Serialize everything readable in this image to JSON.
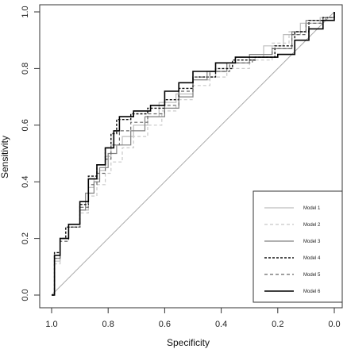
{
  "chart_data": {
    "type": "line",
    "title": "",
    "xlabel": "Specificity",
    "ylabel": "Sensitivity",
    "x_reversed": true,
    "xlim": [
      1.0,
      0.0
    ],
    "ylim": [
      0.0,
      1.0
    ],
    "x_ticks": [
      "1.0",
      "0.8",
      "0.6",
      "0.4",
      "0.2",
      "0.0"
    ],
    "y_ticks": [
      "0.0",
      "0.2",
      "0.4",
      "0.6",
      "0.8",
      "1.0"
    ],
    "grid": false,
    "legend_position": "bottom-right",
    "reference_line": {
      "from": [
        1.0,
        0.0
      ],
      "to": [
        0.0,
        1.0
      ],
      "color": "#aaaaaa"
    },
    "series": [
      {
        "name": "Model 1",
        "color": "#bdbdbd",
        "dash": "solid",
        "width": 1.2,
        "points": [
          [
            1.0,
            0.0
          ],
          [
            0.99,
            0.12
          ],
          [
            0.97,
            0.2
          ],
          [
            0.94,
            0.25
          ],
          [
            0.9,
            0.3
          ],
          [
            0.87,
            0.38
          ],
          [
            0.85,
            0.41
          ],
          [
            0.83,
            0.44
          ],
          [
            0.81,
            0.49
          ],
          [
            0.79,
            0.53
          ],
          [
            0.75,
            0.56
          ],
          [
            0.71,
            0.6
          ],
          [
            0.66,
            0.63
          ],
          [
            0.62,
            0.68
          ],
          [
            0.56,
            0.71
          ],
          [
            0.5,
            0.76
          ],
          [
            0.44,
            0.79
          ],
          [
            0.38,
            0.82
          ],
          [
            0.3,
            0.84
          ],
          [
            0.25,
            0.88
          ],
          [
            0.18,
            0.92
          ],
          [
            0.12,
            0.96
          ],
          [
            0.05,
            0.98
          ],
          [
            0.0,
            1.0
          ]
        ]
      },
      {
        "name": "Model 2",
        "color": "#c8c8c8",
        "dash": "4,3",
        "width": 1.2,
        "points": [
          [
            1.0,
            0.0
          ],
          [
            0.99,
            0.11
          ],
          [
            0.97,
            0.19
          ],
          [
            0.94,
            0.24
          ],
          [
            0.9,
            0.29
          ],
          [
            0.87,
            0.35
          ],
          [
            0.84,
            0.39
          ],
          [
            0.81,
            0.43
          ],
          [
            0.79,
            0.47
          ],
          [
            0.75,
            0.52
          ],
          [
            0.71,
            0.56
          ],
          [
            0.66,
            0.6
          ],
          [
            0.61,
            0.65
          ],
          [
            0.56,
            0.69
          ],
          [
            0.5,
            0.74
          ],
          [
            0.44,
            0.77
          ],
          [
            0.38,
            0.8
          ],
          [
            0.3,
            0.83
          ],
          [
            0.22,
            0.89
          ],
          [
            0.16,
            0.93
          ],
          [
            0.1,
            0.96
          ],
          [
            0.05,
            0.98
          ],
          [
            0.0,
            1.0
          ]
        ]
      },
      {
        "name": "Model 3",
        "color": "#808080",
        "dash": "solid",
        "width": 1.2,
        "points": [
          [
            1.0,
            0.0
          ],
          [
            0.99,
            0.13
          ],
          [
            0.97,
            0.2
          ],
          [
            0.94,
            0.25
          ],
          [
            0.9,
            0.3
          ],
          [
            0.88,
            0.36
          ],
          [
            0.85,
            0.4
          ],
          [
            0.83,
            0.45
          ],
          [
            0.8,
            0.5
          ],
          [
            0.77,
            0.53
          ],
          [
            0.72,
            0.58
          ],
          [
            0.67,
            0.63
          ],
          [
            0.6,
            0.66
          ],
          [
            0.55,
            0.7
          ],
          [
            0.5,
            0.76
          ],
          [
            0.45,
            0.79
          ],
          [
            0.38,
            0.82
          ],
          [
            0.3,
            0.85
          ],
          [
            0.22,
            0.87
          ],
          [
            0.15,
            0.93
          ],
          [
            0.1,
            0.97
          ],
          [
            0.03,
            0.98
          ],
          [
            0.0,
            1.0
          ]
        ]
      },
      {
        "name": "Model 4",
        "color": "#111111",
        "dash": "3,2",
        "width": 1.4,
        "points": [
          [
            1.0,
            0.0
          ],
          [
            0.99,
            0.15
          ],
          [
            0.97,
            0.2
          ],
          [
            0.95,
            0.24
          ],
          [
            0.9,
            0.32
          ],
          [
            0.87,
            0.42
          ],
          [
            0.84,
            0.46
          ],
          [
            0.81,
            0.52
          ],
          [
            0.79,
            0.57
          ],
          [
            0.77,
            0.62
          ],
          [
            0.72,
            0.64
          ],
          [
            0.66,
            0.66
          ],
          [
            0.6,
            0.69
          ],
          [
            0.55,
            0.73
          ],
          [
            0.5,
            0.77
          ],
          [
            0.42,
            0.8
          ],
          [
            0.36,
            0.83
          ],
          [
            0.28,
            0.84
          ],
          [
            0.21,
            0.88
          ],
          [
            0.14,
            0.93
          ],
          [
            0.09,
            0.97
          ],
          [
            0.04,
            0.98
          ],
          [
            0.0,
            1.0
          ]
        ]
      },
      {
        "name": "Model 5",
        "color": "#666666",
        "dash": "4,3",
        "width": 1.2,
        "points": [
          [
            1.0,
            0.0
          ],
          [
            0.99,
            0.13
          ],
          [
            0.97,
            0.19
          ],
          [
            0.94,
            0.24
          ],
          [
            0.9,
            0.31
          ],
          [
            0.87,
            0.39
          ],
          [
            0.84,
            0.43
          ],
          [
            0.81,
            0.48
          ],
          [
            0.79,
            0.53
          ],
          [
            0.76,
            0.58
          ],
          [
            0.72,
            0.61
          ],
          [
            0.66,
            0.64
          ],
          [
            0.6,
            0.67
          ],
          [
            0.55,
            0.72
          ],
          [
            0.5,
            0.77
          ],
          [
            0.44,
            0.79
          ],
          [
            0.37,
            0.82
          ],
          [
            0.29,
            0.84
          ],
          [
            0.22,
            0.87
          ],
          [
            0.15,
            0.92
          ],
          [
            0.1,
            0.96
          ],
          [
            0.04,
            0.98
          ],
          [
            0.0,
            1.0
          ]
        ]
      },
      {
        "name": "Model 6",
        "color": "#000000",
        "dash": "solid",
        "width": 1.6,
        "points": [
          [
            1.0,
            0.0
          ],
          [
            0.99,
            0.14
          ],
          [
            0.97,
            0.2
          ],
          [
            0.94,
            0.25
          ],
          [
            0.9,
            0.33
          ],
          [
            0.87,
            0.41
          ],
          [
            0.84,
            0.46
          ],
          [
            0.81,
            0.52
          ],
          [
            0.78,
            0.58
          ],
          [
            0.76,
            0.63
          ],
          [
            0.71,
            0.65
          ],
          [
            0.65,
            0.67
          ],
          [
            0.6,
            0.72
          ],
          [
            0.55,
            0.75
          ],
          [
            0.5,
            0.79
          ],
          [
            0.42,
            0.82
          ],
          [
            0.35,
            0.84
          ],
          [
            0.28,
            0.84
          ],
          [
            0.2,
            0.85
          ],
          [
            0.14,
            0.9
          ],
          [
            0.09,
            0.94
          ],
          [
            0.04,
            0.97
          ],
          [
            0.0,
            1.0
          ]
        ]
      }
    ]
  }
}
